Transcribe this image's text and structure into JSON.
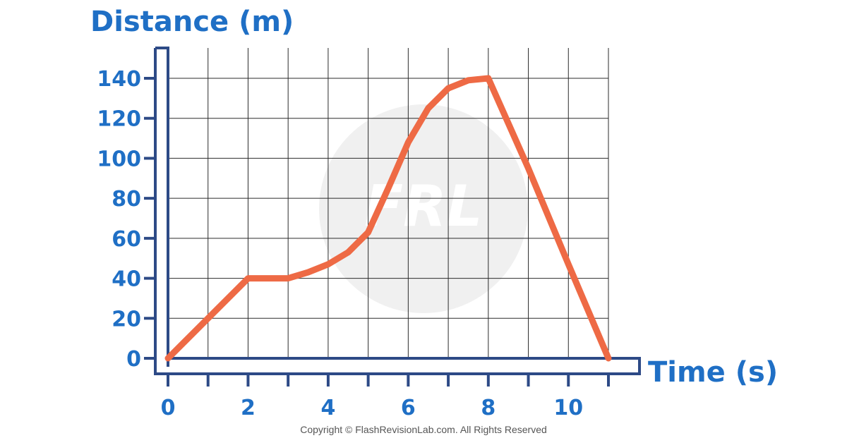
{
  "colors": {
    "axis": "#2d4a86",
    "grid": "#2b2b2b",
    "line": "#ee6a45",
    "text": "#1f6fc5",
    "watermark": "#f0f0f0"
  },
  "watermark_icon": "frl-logo-icon",
  "copyright": "Copyright © FlashRevisionLab.com. All Rights Reserved",
  "chart_data": {
    "type": "line",
    "xlabel": "Time (s)",
    "ylabel": "Distance (m)",
    "xlim": [
      0,
      11
    ],
    "ylim": [
      0,
      140
    ],
    "x_ticks": [
      0,
      1,
      2,
      3,
      4,
      5,
      6,
      7,
      8,
      9,
      10,
      11
    ],
    "x_tick_labels": [
      {
        "value": 0,
        "label": "0"
      },
      {
        "value": 2,
        "label": "2"
      },
      {
        "value": 4,
        "label": "4"
      },
      {
        "value": 6,
        "label": "6"
      },
      {
        "value": 8,
        "label": "8"
      },
      {
        "value": 10,
        "label": "10"
      }
    ],
    "y_ticks": [
      0,
      20,
      40,
      60,
      80,
      100,
      120,
      140
    ],
    "y_tick_labels": [
      "0",
      "20",
      "40",
      "60",
      "80",
      "100",
      "120",
      "140"
    ],
    "grid": true,
    "series": [
      {
        "points": [
          [
            0,
            0
          ],
          [
            1,
            20
          ],
          [
            2,
            40
          ],
          [
            3,
            40
          ],
          [
            3.5,
            43
          ],
          [
            4,
            47
          ],
          [
            4.5,
            53
          ],
          [
            5,
            63
          ],
          [
            5.5,
            85
          ],
          [
            6,
            108
          ],
          [
            6.5,
            125
          ],
          [
            7,
            135
          ],
          [
            7.5,
            139
          ],
          [
            8,
            140
          ],
          [
            9,
            95
          ],
          [
            10,
            47
          ],
          [
            11,
            0
          ]
        ]
      }
    ]
  }
}
